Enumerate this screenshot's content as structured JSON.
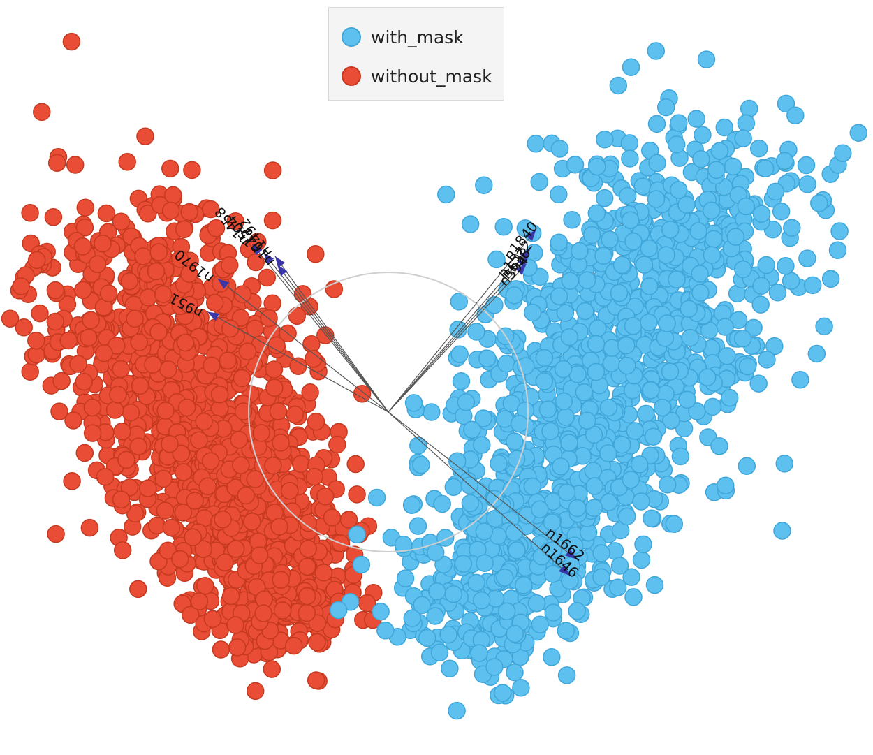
{
  "chart_data": {
    "type": "scatter",
    "title": "",
    "xlabel": "",
    "ylabel": "",
    "legend_position": "top-center",
    "grid": false,
    "series": [
      {
        "name": "with_mask",
        "color": "#5ec0ee",
        "edge": "#3fa6da",
        "cluster": "right",
        "approx_points": 1300
      },
      {
        "name": "without_mask",
        "color": "#e94d35",
        "edge": "#c4391f",
        "cluster": "left",
        "approx_points": 1300
      }
    ],
    "unit_circle": true,
    "vectors": [
      {
        "label": "n1458",
        "angle_deg": 129,
        "length": 1.55
      },
      {
        "label": "n1504",
        "angle_deg": 128,
        "length": 1.45
      },
      {
        "label": "n1492",
        "angle_deg": 126,
        "length": 1.38
      },
      {
        "label": "n1647",
        "angle_deg": 127,
        "length": 1.32
      },
      {
        "label": "n1970",
        "angle_deg": 142,
        "length": 1.55
      },
      {
        "label": "n951",
        "angle_deg": 151,
        "length": 1.48
      },
      {
        "label": "n1840",
        "angle_deg": 51,
        "length": 1.68
      },
      {
        "label": "n1572",
        "angle_deg": 49,
        "length": 1.55
      },
      {
        "label": "n638",
        "angle_deg": 48,
        "length": 1.5
      },
      {
        "label": "n594",
        "angle_deg": 47,
        "length": 1.45
      },
      {
        "label": "n1662",
        "angle_deg": -38,
        "length": 1.71
      },
      {
        "label": "n1646",
        "angle_deg": -42,
        "length": 1.75
      }
    ]
  }
}
